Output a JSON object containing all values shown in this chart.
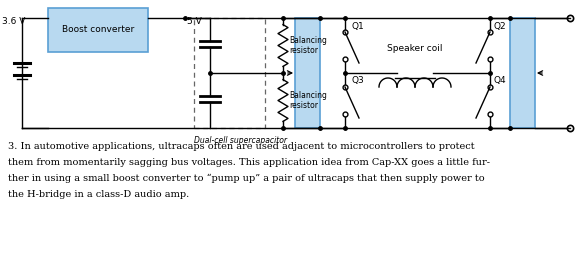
{
  "bg_color": "#ffffff",
  "circuit_color": "#000000",
  "cap_fill": "#b8d9f0",
  "cap_stroke": "#5a9fd4",
  "boost_fill": "#b8d9f0",
  "boost_stroke": "#5a9fd4",
  "text_3v6": "3.6 V",
  "text_5v": "5 V",
  "text_boost": "Boost converter",
  "text_dual": "Dual-cell supercapacitor",
  "text_bal1": "Balancing\nresistor",
  "text_bal2": "Balancing\nresistor",
  "text_q1": "Q1",
  "text_q2": "Q2",
  "text_q3": "Q3",
  "text_q4": "Q4",
  "text_speaker": "Speaker coil",
  "caption_line1": "3. In automotive applications, ultracaps often are used adjacent to microcontrollers to protect",
  "caption_line2": "them from momentarily sagging bus voltages. This application idea from Cap-XX goes a little fur-",
  "caption_line3": "ther in using a small boost converter to “pump up” a pair of ultracaps that then supply power to",
  "caption_line4": "the H-bridge in a class-D audio amp.",
  "fig_width": 5.85,
  "fig_height": 2.68,
  "dpi": 100
}
